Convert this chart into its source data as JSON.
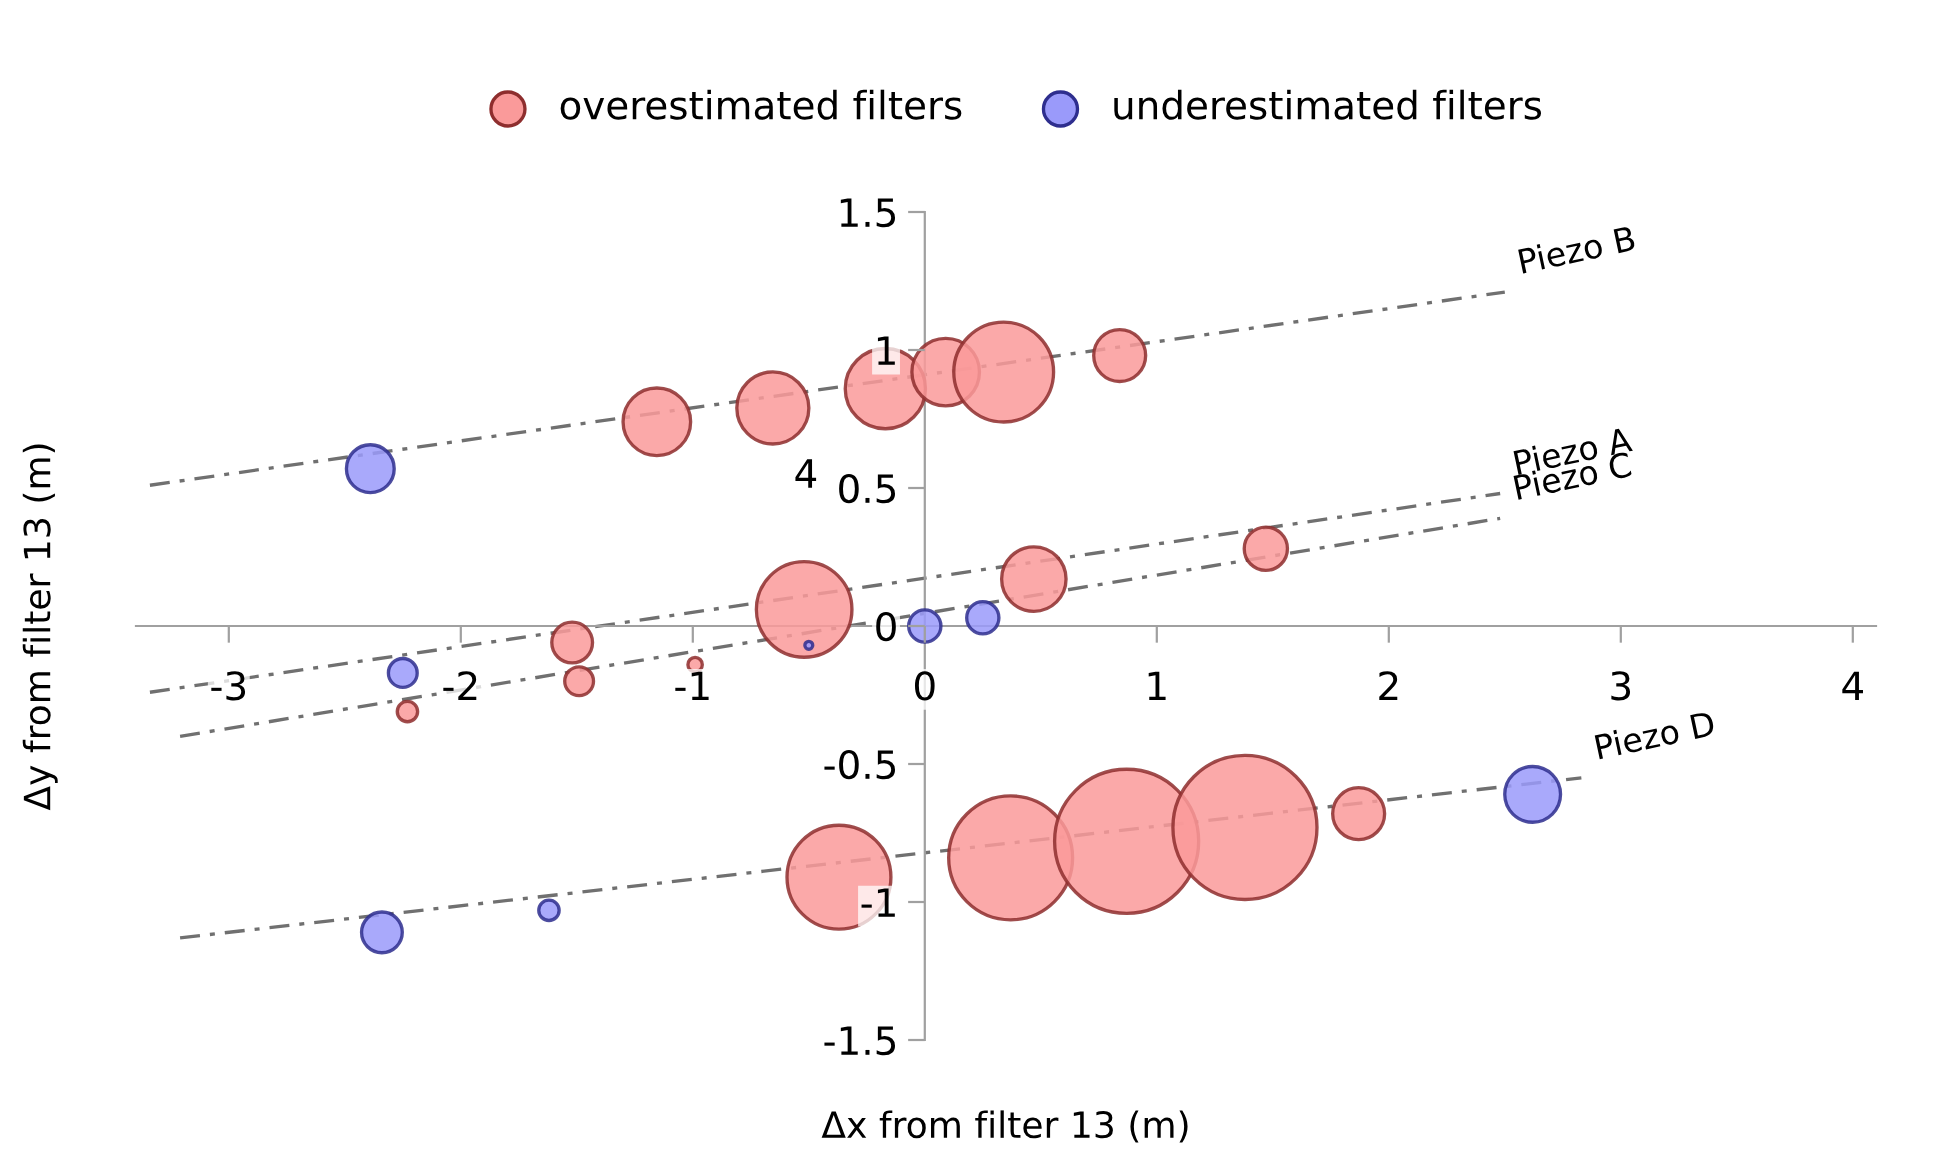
{
  "chart_data": {
    "type": "bubble",
    "xlabel": "Δx from filter 13 (m)",
    "ylabel": "Δy from filter 13 (m)",
    "xlim": [
      -3.4,
      4.1
    ],
    "ylim": [
      -1.5,
      1.5
    ],
    "xticks": [
      -3,
      -2,
      -1,
      0,
      1,
      2,
      3,
      4
    ],
    "yticks": [
      -1.5,
      -1,
      -0.5,
      0,
      0.5,
      1,
      1.5
    ],
    "grid": false,
    "legend": "top",
    "series": [
      {
        "name": "overestimated filters",
        "color": "#fa9a9a",
        "x": [
          -1.155,
          -0.655,
          -0.17,
          0.09,
          0.34,
          0.84,
          -0.52,
          0.47,
          1.47,
          -1.52,
          -1.49,
          -0.99,
          -2.23,
          -0.37,
          0.37,
          0.87,
          1.38,
          1.87
        ],
        "values": [
          0.74,
          0.79,
          0.86,
          0.92,
          0.92,
          0.98,
          0.06,
          0.17,
          0.28,
          -0.06,
          -0.2,
          -0.14,
          -0.31,
          -0.91,
          -0.84,
          -0.78,
          -0.73,
          -0.68
        ],
        "sizes": [
          0.22,
          0.25,
          0.31,
          0.22,
          0.48,
          0.13,
          0.44,
          0.2,
          0.09,
          0.08,
          0.04,
          0.01,
          0.02,
          0.52,
          0.74,
          1,
          1,
          0.13
        ]
      },
      {
        "name": "underestimated filters",
        "color": "#9a9afa",
        "x": [
          -2.39,
          -2.25,
          -0.5,
          0,
          0.25,
          -2.34,
          -1.62,
          2.62
        ],
        "values": [
          0.57,
          -0.17,
          -0.07,
          0,
          0.03,
          -1.11,
          -1.03,
          -0.61
        ],
        "sizes": [
          0.11,
          0.04,
          0.003,
          0.05,
          0.05,
          0.08,
          0.02,
          0.15
        ]
      },
      {
        "name": "Piezo B",
        "type": "line",
        "color": "#707070",
        "line_style": "dashdot",
        "x": [
          -3.34,
          2.5
        ],
        "values": [
          0.51,
          1.21
        ]
      },
      {
        "name": "Piezo A",
        "type": "line",
        "color": "#707070",
        "line_style": "dashdot",
        "x": [
          -3.34,
          2.48
        ],
        "values": [
          -0.24,
          0.48
        ]
      },
      {
        "name": "Piezo C",
        "type": "line",
        "color": "#707070",
        "line_style": "dashdot",
        "x": [
          -3.21,
          2.48
        ],
        "values": [
          -0.4,
          0.39
        ]
      },
      {
        "name": "Piezo D",
        "type": "line",
        "color": "#707070",
        "line_style": "dashdot",
        "x": [
          -3.21,
          2.83
        ],
        "values": [
          -1.13,
          -0.55
        ]
      }
    ],
    "annotations": [
      "4"
    ]
  }
}
